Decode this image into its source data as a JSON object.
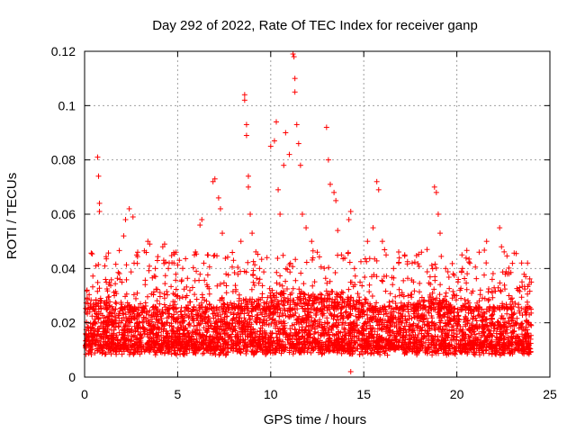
{
  "chart_data": {
    "type": "scatter",
    "title": "Day 292 of 2022, Rate Of TEC Index for receiver ganp",
    "xlabel": "GPS time / hours",
    "ylabel": "ROTI / TECUs",
    "xlim": [
      0,
      25
    ],
    "ylim": [
      0,
      0.12
    ],
    "x_ticks": [
      0,
      5,
      10,
      15,
      20,
      25
    ],
    "x_tick_labels": [
      "0",
      "5",
      "10",
      "15",
      "20",
      "25"
    ],
    "y_ticks": [
      0,
      0.02,
      0.04,
      0.06,
      0.08,
      0.1,
      0.12
    ],
    "y_tick_labels": [
      "0",
      "0.02",
      "0.04",
      "0.06",
      "0.08",
      "0.1",
      "0.12"
    ],
    "grid": true,
    "marker": "+",
    "series_color": "#ff0000",
    "series": [
      {
        "name": "ROTI",
        "points": [
          [
            0.1,
            0.012
          ],
          [
            0.3,
            0.018
          ],
          [
            0.5,
            0.025
          ],
          [
            0.7,
            0.081
          ],
          [
            0.75,
            0.074
          ],
          [
            0.8,
            0.064
          ],
          [
            0.8,
            0.061
          ],
          [
            0.9,
            0.028
          ],
          [
            1.2,
            0.02
          ],
          [
            1.6,
            0.03
          ],
          [
            1.9,
            0.036
          ],
          [
            2.1,
            0.052
          ],
          [
            2.2,
            0.058
          ],
          [
            2.4,
            0.062
          ],
          [
            2.6,
            0.059
          ],
          [
            2.8,
            0.045
          ],
          [
            3.0,
            0.027
          ],
          [
            3.4,
            0.05
          ],
          [
            3.5,
            0.049
          ],
          [
            3.8,
            0.04
          ],
          [
            4.2,
            0.048
          ],
          [
            4.3,
            0.049
          ],
          [
            4.5,
            0.04
          ],
          [
            4.8,
            0.042
          ],
          [
            5.0,
            0.03
          ],
          [
            5.5,
            0.03
          ],
          [
            5.8,
            0.033
          ],
          [
            6.0,
            0.039
          ],
          [
            6.2,
            0.056
          ],
          [
            6.3,
            0.058
          ],
          [
            6.6,
            0.045
          ],
          [
            6.9,
            0.072
          ],
          [
            7.0,
            0.073
          ],
          [
            7.2,
            0.066
          ],
          [
            7.3,
            0.062
          ],
          [
            7.4,
            0.053
          ],
          [
            7.6,
            0.038
          ],
          [
            8.0,
            0.043
          ],
          [
            8.4,
            0.05
          ],
          [
            8.6,
            0.104
          ],
          [
            8.6,
            0.102
          ],
          [
            8.7,
            0.093
          ],
          [
            8.7,
            0.089
          ],
          [
            8.8,
            0.074
          ],
          [
            8.8,
            0.07
          ],
          [
            8.9,
            0.06
          ],
          [
            9.0,
            0.053
          ],
          [
            9.4,
            0.04
          ],
          [
            9.8,
            0.044
          ],
          [
            10.0,
            0.085
          ],
          [
            10.2,
            0.087
          ],
          [
            10.3,
            0.094
          ],
          [
            10.4,
            0.069
          ],
          [
            10.5,
            0.06
          ],
          [
            10.7,
            0.078
          ],
          [
            10.8,
            0.09
          ],
          [
            11.0,
            0.082
          ],
          [
            11.2,
            0.119
          ],
          [
            11.25,
            0.118
          ],
          [
            11.3,
            0.11
          ],
          [
            11.3,
            0.105
          ],
          [
            11.4,
            0.093
          ],
          [
            11.5,
            0.086
          ],
          [
            11.6,
            0.078
          ],
          [
            11.7,
            0.06
          ],
          [
            11.9,
            0.055
          ],
          [
            12.2,
            0.05
          ],
          [
            12.5,
            0.046
          ],
          [
            13.0,
            0.092
          ],
          [
            13.1,
            0.08
          ],
          [
            13.2,
            0.071
          ],
          [
            13.4,
            0.068
          ],
          [
            13.5,
            0.065
          ],
          [
            13.6,
            0.054
          ],
          [
            13.8,
            0.045
          ],
          [
            14.2,
            0.058
          ],
          [
            14.3,
            0.061
          ],
          [
            14.5,
            0.04
          ],
          [
            14.8,
            0.035
          ],
          [
            15.2,
            0.05
          ],
          [
            15.5,
            0.055
          ],
          [
            15.7,
            0.072
          ],
          [
            15.8,
            0.069
          ],
          [
            16.0,
            0.05
          ],
          [
            16.2,
            0.045
          ],
          [
            16.6,
            0.04
          ],
          [
            17.2,
            0.045
          ],
          [
            17.6,
            0.042
          ],
          [
            18.1,
            0.046
          ],
          [
            18.4,
            0.047
          ],
          [
            18.8,
            0.07
          ],
          [
            18.9,
            0.068
          ],
          [
            19.0,
            0.06
          ],
          [
            19.1,
            0.053
          ],
          [
            19.4,
            0.04
          ],
          [
            19.8,
            0.038
          ],
          [
            20.3,
            0.04
          ],
          [
            20.7,
            0.042
          ],
          [
            21.2,
            0.046
          ],
          [
            21.6,
            0.05
          ],
          [
            21.9,
            0.036
          ],
          [
            22.3,
            0.055
          ],
          [
            22.4,
            0.048
          ],
          [
            22.8,
            0.03
          ],
          [
            23.3,
            0.032
          ],
          [
            23.7,
            0.037
          ],
          [
            23.8,
            0.042
          ],
          [
            24.0,
            0.035
          ],
          [
            14.3,
            0.002
          ]
        ]
      }
    ]
  }
}
